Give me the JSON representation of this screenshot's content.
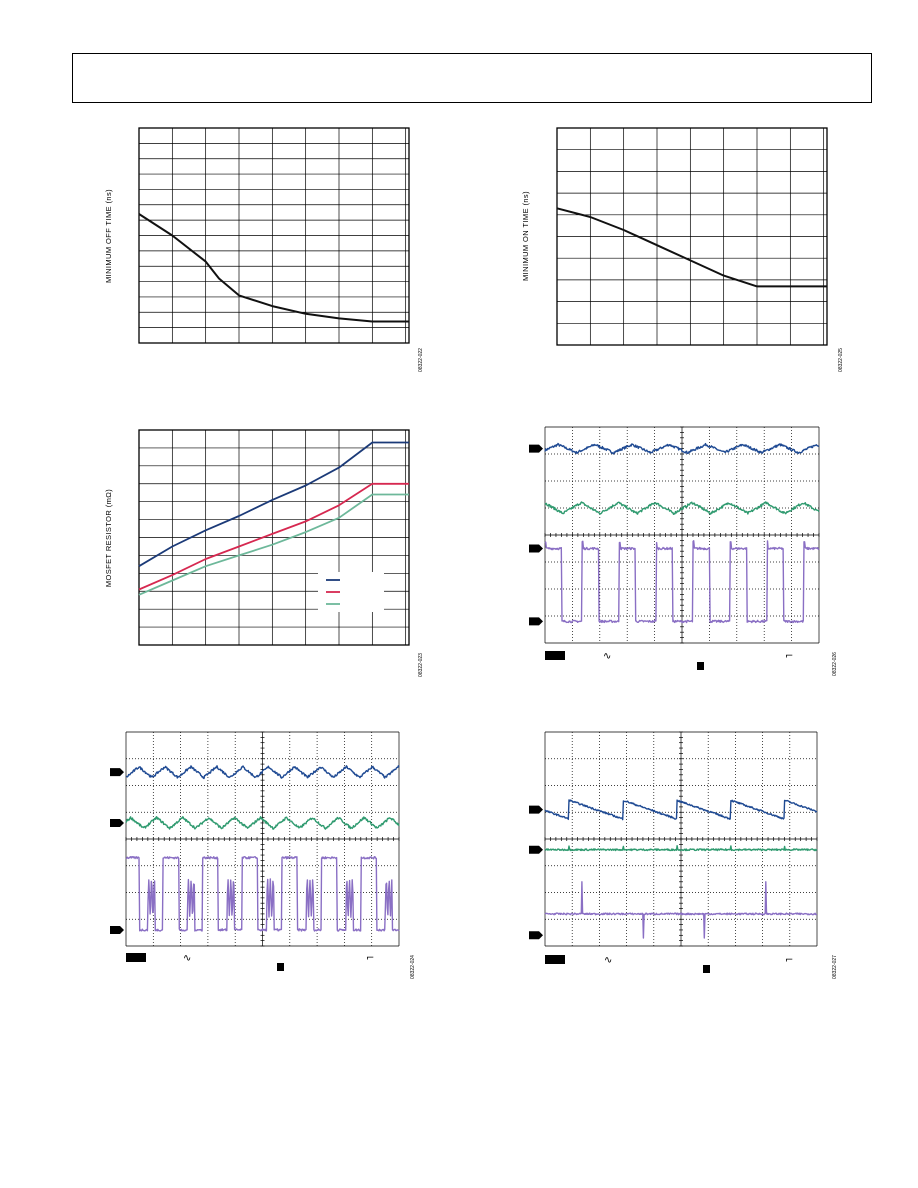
{
  "chart_data": [
    {
      "id": "min-off-time",
      "type": "line",
      "ylabel": "MINIMUM OFF TIME (ns)",
      "figure_id": "08322-022",
      "xlim": [
        0,
        8.1
      ],
      "ylim": [
        0,
        14
      ],
      "grid": true,
      "series": [
        {
          "color": "#111111",
          "x": [
            0,
            1,
            2,
            2.4,
            3,
            4,
            5,
            6,
            7,
            8.1
          ],
          "y": [
            8.4,
            7.0,
            5.3,
            4.2,
            3.1,
            2.4,
            1.9,
            1.6,
            1.4,
            1.4
          ]
        }
      ]
    },
    {
      "id": "min-on-time",
      "type": "line",
      "ylabel": "MINIMUM ON TIME (ns)",
      "figure_id": "08322-025",
      "xlim": [
        0,
        8.1
      ],
      "ylim": [
        0,
        10
      ],
      "grid": true,
      "series": [
        {
          "color": "#111111",
          "x": [
            0,
            1,
            2,
            3,
            4,
            5,
            6,
            6.7,
            8.1
          ],
          "y": [
            6.3,
            5.9,
            5.3,
            4.6,
            3.9,
            3.2,
            2.7,
            2.7,
            2.7
          ]
        }
      ]
    },
    {
      "id": "mosfet-resistor",
      "type": "line",
      "ylabel": "MOSFET RESISTOR (mΩ)",
      "figure_id": "08322-023",
      "xlim": [
        0,
        8.1
      ],
      "ylim": [
        0,
        12
      ],
      "grid": true,
      "legend_position": "bottom-right",
      "series": [
        {
          "color": "#1b3a78",
          "x": [
            0,
            1,
            2,
            3,
            4,
            5,
            6,
            7,
            8.1
          ],
          "y": [
            4.4,
            5.5,
            6.4,
            7.2,
            8.1,
            8.9,
            9.9,
            11.3,
            11.3
          ]
        },
        {
          "color": "#d62850",
          "x": [
            0,
            1,
            2,
            3,
            4,
            5,
            6,
            7,
            8.1
          ],
          "y": [
            3.1,
            3.9,
            4.8,
            5.5,
            6.2,
            6.9,
            7.8,
            9.0,
            9.0
          ]
        },
        {
          "color": "#6db89a",
          "x": [
            0,
            1,
            2,
            3,
            4,
            5,
            6,
            7,
            8.1
          ],
          "y": [
            2.8,
            3.6,
            4.4,
            5.0,
            5.6,
            6.3,
            7.1,
            8.4,
            8.4
          ]
        }
      ]
    },
    {
      "id": "scope-1",
      "type": "line",
      "figure_id": "08322-026",
      "xlim": [
        0,
        10
      ],
      "ylim": [
        0,
        8
      ],
      "grid": true,
      "traces": [
        {
          "color": "#1f4a93",
          "shape": "triangle",
          "level": 7.2,
          "amplitude": 0.15,
          "period": 1.35,
          "phase": 0.2
        },
        {
          "color": "#2f9a6f",
          "shape": "triangle",
          "level": 5.0,
          "amplitude": 0.2,
          "period": 1.35,
          "phase": 0.7
        },
        {
          "color": "#8a6fc4",
          "shape": "square",
          "level_low": 0.8,
          "level_high": 3.5,
          "period": 1.35,
          "duty": 0.45,
          "phase": 0.0
        }
      ],
      "markers_y": [
        7.2,
        3.5,
        0.8
      ],
      "bottom_symbols": [
        "∿",
        "⌐"
      ]
    },
    {
      "id": "scope-2",
      "type": "line",
      "figure_id": "08322-024",
      "xlim": [
        0,
        10
      ],
      "ylim": [
        0,
        8
      ],
      "grid": true,
      "traces": [
        {
          "color": "#1f4a93",
          "shape": "triangle",
          "level": 6.5,
          "amplitude": 0.2,
          "period": 0.95,
          "phase": 0.0
        },
        {
          "color": "#2f9a6f",
          "shape": "triangle",
          "level": 4.6,
          "amplitude": 0.2,
          "period": 0.95,
          "phase": 0.3
        },
        {
          "color": "#8a6fc4",
          "shape": "burst",
          "level_low": 0.6,
          "level_high": 3.3,
          "period": 1.45,
          "duty": 0.4,
          "phase": 0.1
        }
      ],
      "markers_y": [
        6.5,
        4.6,
        0.6
      ],
      "bottom_symbols": [
        "∿",
        "⌐"
      ]
    },
    {
      "id": "scope-3",
      "type": "line",
      "figure_id": "08322-027",
      "xlim": [
        0,
        10
      ],
      "ylim": [
        0,
        8
      ],
      "grid": true,
      "traces": [
        {
          "color": "#1f4a93",
          "shape": "sawtooth",
          "level": 5.1,
          "amplitude": 0.35,
          "period": 1.98,
          "phase": 1.1
        },
        {
          "color": "#2f9a6f",
          "shape": "flat",
          "level": 3.6,
          "amplitude": 0.0,
          "period": 1.98,
          "phase": 1.1
        },
        {
          "color": "#8a6fc4",
          "shape": "spike",
          "level": 1.2,
          "amplitude": 1.2,
          "period": 2.25,
          "phase": 0.9
        }
      ],
      "markers_y": [
        5.1,
        3.6,
        0.4
      ],
      "bottom_symbols": [
        "∿",
        "⌐"
      ]
    }
  ]
}
